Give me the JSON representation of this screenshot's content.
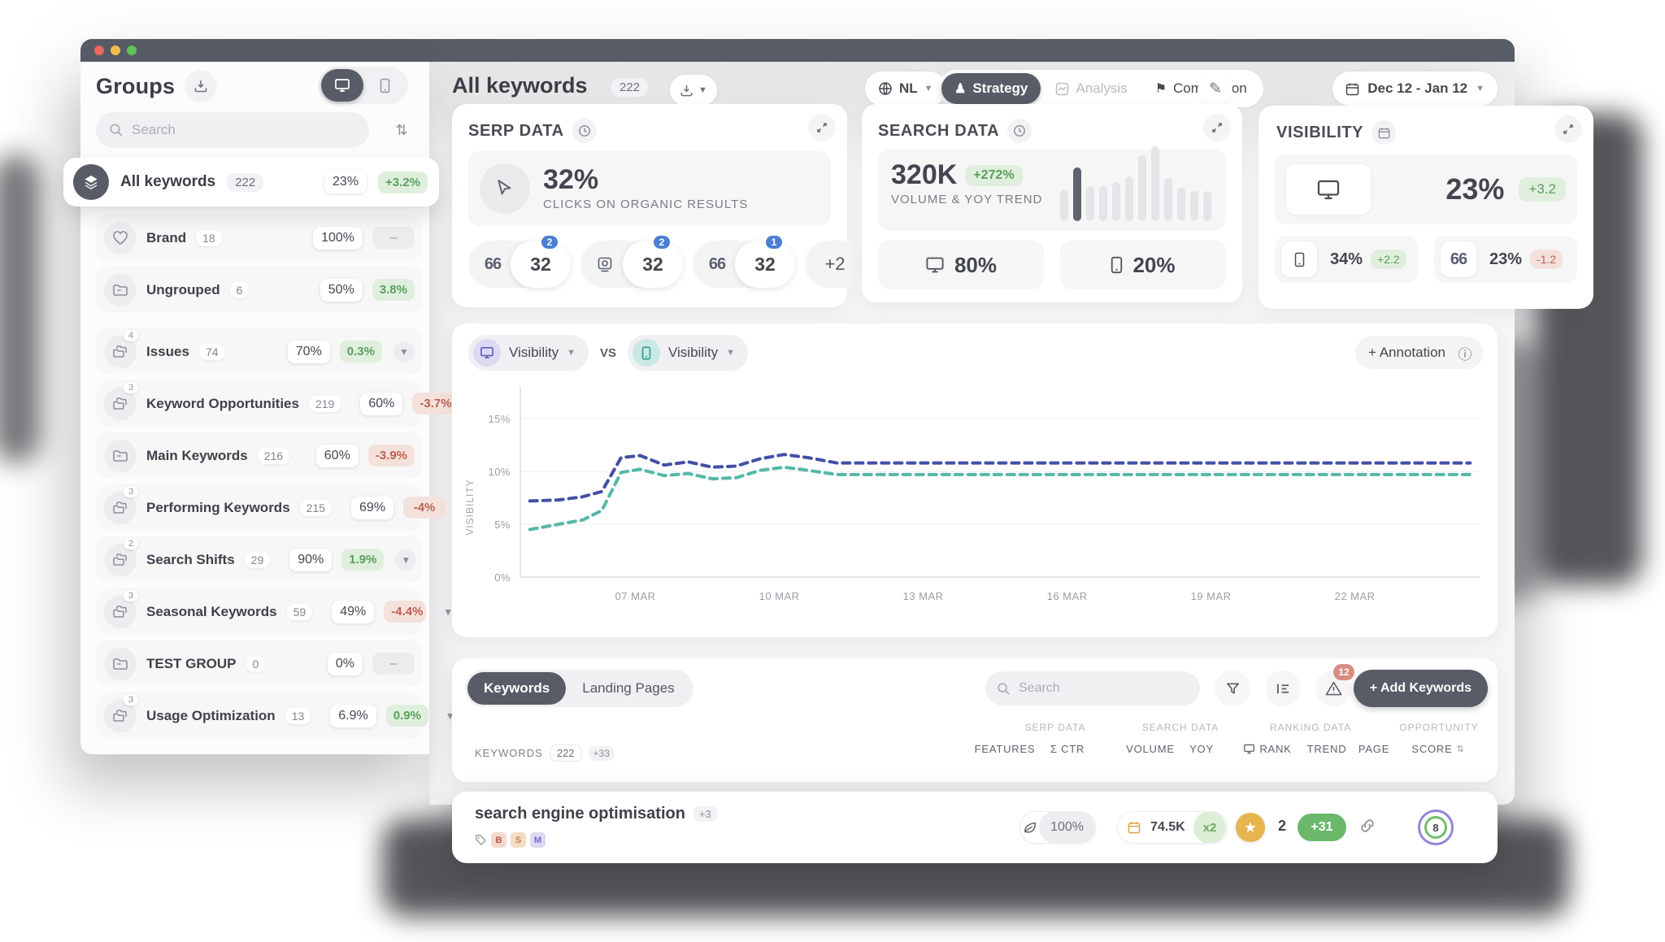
{
  "sidebar": {
    "title": "Groups",
    "search_placeholder": "Search",
    "all_keywords": {
      "label": "All keywords",
      "count": "222",
      "value": "23%",
      "delta": "+3.2%",
      "delta_type": "up"
    },
    "groups": [
      {
        "label": "Brand",
        "count": "18",
        "icon": "heart",
        "badge": null,
        "value": "100%",
        "delta": "–",
        "delta_type": "none",
        "chevron": false,
        "gap_before": false
      },
      {
        "label": "Ungrouped",
        "count": "6",
        "icon": "folder",
        "badge": null,
        "value": "50%",
        "delta": "3.8%",
        "delta_type": "up",
        "chevron": false,
        "gap_before": false
      },
      {
        "label": "Issues",
        "count": "74",
        "icon": "folders",
        "badge": "4",
        "value": "70%",
        "delta": "0.3%",
        "delta_type": "up",
        "chevron": true,
        "gap_before": true
      },
      {
        "label": "Keyword Opportunities",
        "count": "219",
        "icon": "folders",
        "badge": "3",
        "value": "60%",
        "delta": "-3.7%",
        "delta_type": "down",
        "chevron": true,
        "gap_before": false
      },
      {
        "label": "Main Keywords",
        "count": "216",
        "icon": "folder",
        "badge": null,
        "value": "60%",
        "delta": "-3.9%",
        "delta_type": "down",
        "chevron": false,
        "gap_before": false
      },
      {
        "label": "Performing Keywords",
        "count": "215",
        "icon": "folders",
        "badge": "3",
        "value": "69%",
        "delta": "-4%",
        "delta_type": "down",
        "chevron": true,
        "gap_before": false
      },
      {
        "label": "Search Shifts",
        "count": "29",
        "icon": "folders",
        "badge": "2",
        "value": "90%",
        "delta": "1.9%",
        "delta_type": "up",
        "chevron": true,
        "gap_before": false
      },
      {
        "label": "Seasonal Keywords",
        "count": "59",
        "icon": "folders",
        "badge": "3",
        "value": "49%",
        "delta": "-4.4%",
        "delta_type": "down",
        "chevron": true,
        "gap_before": false
      },
      {
        "label": "TEST GROUP",
        "count": "0",
        "icon": "folder",
        "badge": null,
        "value": "0%",
        "delta": "–",
        "delta_type": "none",
        "chevron": false,
        "gap_before": false
      },
      {
        "label": "Usage Optimization",
        "count": "13",
        "icon": "folders",
        "badge": "3",
        "value": "6.9%",
        "delta": "0.9%",
        "delta_type": "up",
        "chevron": true,
        "gap_before": false
      }
    ]
  },
  "header": {
    "title": "All keywords",
    "count": "222",
    "locale": "NL",
    "tab_strategy": "Strategy",
    "tab_analysis": "Analysis",
    "tab_competition": "Competition",
    "date_range": "Dec 12 - Jan 12"
  },
  "serp_card": {
    "title": "SERP DATA",
    "stat": "32%",
    "stat_label": "CLICKS ON ORGANIC RESULTS",
    "pills": [
      {
        "icon": "quote",
        "value": "32",
        "badge": "2"
      },
      {
        "icon": "video",
        "value": "32",
        "badge": "2"
      },
      {
        "icon": "quote",
        "value": "32",
        "badge": "1"
      }
    ],
    "more": "+2"
  },
  "search_card": {
    "title": "SEARCH DATA",
    "stat": "320K",
    "delta": "+272%",
    "stat_label": "VOLUME & YOY TREND",
    "desktop_share": "80%",
    "mobile_share": "20%",
    "bars": [
      42,
      72,
      47,
      47,
      52,
      60,
      88,
      100,
      58,
      45,
      40,
      40
    ],
    "dark_bar_index": 1
  },
  "visibility_card": {
    "title": "VISIBILITY",
    "desktop": {
      "value": "23%",
      "delta": "+3.2",
      "delta_type": "up"
    },
    "mobile": {
      "value": "34%",
      "delta": "+2.2",
      "delta_type": "up"
    },
    "quotes": {
      "value": "23%",
      "delta": "-1.2",
      "delta_type": "down"
    }
  },
  "chart_header": {
    "metric_a": "Visibility",
    "vs": "VS",
    "metric_b": "Visibility",
    "annotation": "+ Annotation"
  },
  "chart_data": {
    "type": "line",
    "ylabel": "VISIBILITY",
    "x_ticks": [
      "07 MAR",
      "10 MAR",
      "13 MAR",
      "16 MAR",
      "19 MAR",
      "22 MAR"
    ],
    "x_tick_days": [
      7,
      10,
      13,
      16,
      19,
      22
    ],
    "x_domain": [
      4.6,
      24.6
    ],
    "y_ticks": [
      {
        "label": "0%",
        "value": 0
      },
      {
        "label": "5%",
        "value": 5
      },
      {
        "label": "10%",
        "value": 10
      },
      {
        "label": "15%",
        "value": 15
      }
    ],
    "ylim": [
      0,
      18
    ],
    "grid": true,
    "series": [
      {
        "name": "Desktop Visibility",
        "color": "#424fa5",
        "style": "dashed",
        "points": [
          [
            4.8,
            7.2
          ],
          [
            5.4,
            7.3
          ],
          [
            5.9,
            7.6
          ],
          [
            6.3,
            8.1
          ],
          [
            6.7,
            11.3
          ],
          [
            7.1,
            11.5
          ],
          [
            7.6,
            10.6
          ],
          [
            8.1,
            10.9
          ],
          [
            8.6,
            10.4
          ],
          [
            9.1,
            10.5
          ],
          [
            9.6,
            11.2
          ],
          [
            10.1,
            11.6
          ],
          [
            10.6,
            11.3
          ],
          [
            11.2,
            10.8
          ],
          [
            13,
            10.8
          ],
          [
            16,
            10.8
          ],
          [
            19,
            10.8
          ],
          [
            22,
            10.8
          ],
          [
            24.4,
            10.8
          ]
        ]
      },
      {
        "name": "Mobile Visibility",
        "color": "#55b7a8",
        "style": "dashed",
        "points": [
          [
            4.8,
            4.5
          ],
          [
            5.4,
            5.0
          ],
          [
            5.9,
            5.4
          ],
          [
            6.3,
            6.3
          ],
          [
            6.7,
            9.9
          ],
          [
            7.1,
            10.2
          ],
          [
            7.6,
            9.6
          ],
          [
            8.1,
            9.8
          ],
          [
            8.6,
            9.3
          ],
          [
            9.1,
            9.4
          ],
          [
            9.6,
            10.1
          ],
          [
            10.1,
            10.4
          ],
          [
            10.6,
            10.1
          ],
          [
            11.2,
            9.7
          ],
          [
            13,
            9.7
          ],
          [
            16,
            9.7
          ],
          [
            19,
            9.7
          ],
          [
            22,
            9.7
          ],
          [
            24.4,
            9.7
          ]
        ]
      }
    ]
  },
  "keywords_toolbar": {
    "tab_keywords": "Keywords",
    "tab_landing": "Landing Pages",
    "search_placeholder": "Search",
    "alert_count": "12",
    "add_label": "+ Add Keywords"
  },
  "keywords_table": {
    "left_label": "KEYWORDS",
    "count": "222",
    "extra": "+33",
    "group_serp": "SERP DATA",
    "group_search": "SEARCH DATA",
    "group_ranking": "RANKING DATA",
    "group_opportunity": "OPPORTUNITY",
    "col_features": "FEATURES",
    "col_ctr": "Σ CTR",
    "col_volume": "VOLUME",
    "col_yoy": "YOY",
    "col_rank": "RANK",
    "col_trend": "TREND",
    "col_page": "PAGE",
    "col_score": "SCORE"
  },
  "keyword_row": {
    "name": "search engine optimisation",
    "more": "+3",
    "tags": [
      "B",
      "S",
      "M"
    ],
    "ctr": "100%",
    "volume": "74.5K",
    "volume_multiplier": "x2",
    "rank": "2",
    "rank_delta": "+31",
    "score": "8"
  }
}
